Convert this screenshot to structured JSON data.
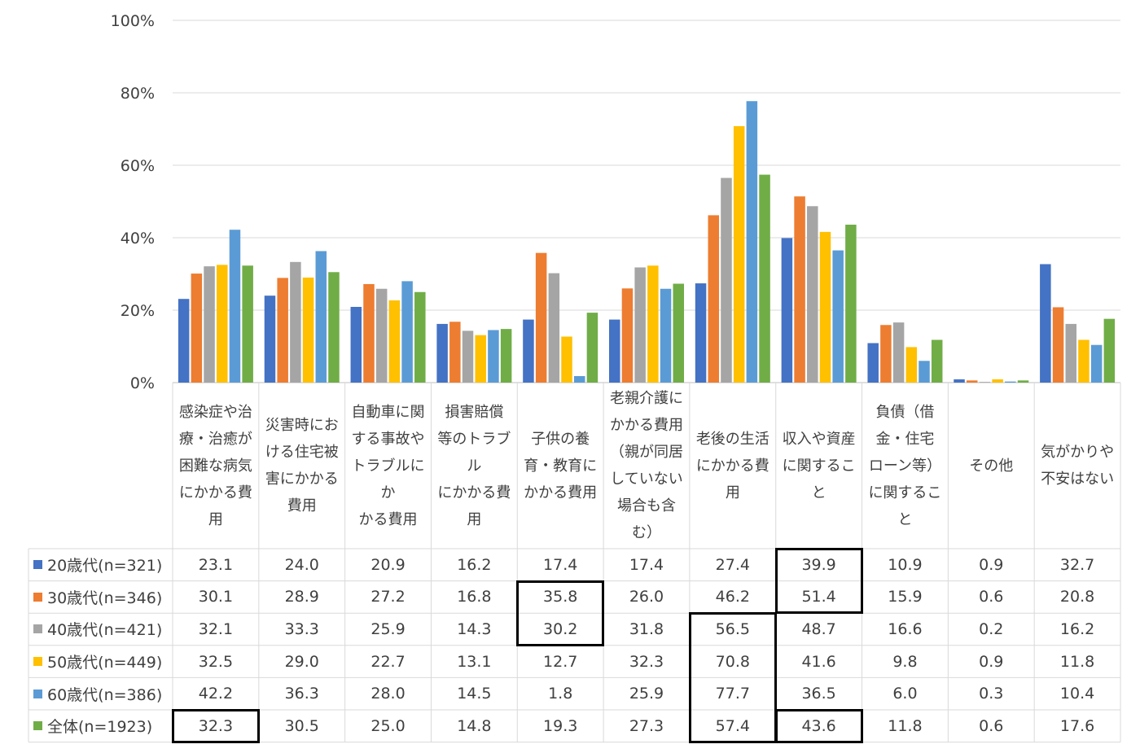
{
  "chart_data": {
    "type": "bar",
    "ylim": [
      0,
      100
    ],
    "y_ticks": [
      "0%",
      "20%",
      "40%",
      "60%",
      "80%",
      "100%"
    ],
    "grid": true,
    "legend": "table-rows",
    "categories": [
      [
        "感染症や治",
        "療・治癒が",
        "困難な病気",
        "にかかる費",
        "用"
      ],
      [
        "災害時にお",
        "ける住宅被",
        "害にかかる",
        "費用"
      ],
      [
        "自動車に関",
        "する事故や",
        "トラブルにか",
        "かる費用"
      ],
      [
        "損害賠償",
        "等のトラブル",
        "にかかる費",
        "用"
      ],
      [
        "子供の養",
        "育・教育に",
        "かかる費用"
      ],
      [
        "老親介護に",
        "かかる費用",
        "（親が同居",
        "していない",
        "場合も含",
        "む）"
      ],
      [
        "老後の生活",
        "にかかる費",
        "用"
      ],
      [
        "収入や資産",
        "に関すること"
      ],
      [
        "負債（借",
        "金・住宅",
        "ローン等）",
        "に関すること"
      ],
      [
        "その他"
      ],
      [
        "気がかりや",
        "不安はない"
      ]
    ],
    "series": [
      {
        "name": "20歳代(n=321)",
        "color": "#4472C4",
        "values": [
          "23.1",
          "24.0",
          "20.9",
          "16.2",
          "17.4",
          "17.4",
          "27.4",
          "39.9",
          "10.9",
          "0.9",
          "32.7"
        ]
      },
      {
        "name": "30歳代(n=346)",
        "color": "#ED7D31",
        "values": [
          "30.1",
          "28.9",
          "27.2",
          "16.8",
          "35.8",
          "26.0",
          "46.2",
          "51.4",
          "15.9",
          "0.6",
          "20.8"
        ]
      },
      {
        "name": "40歳代(n=421)",
        "color": "#A5A5A5",
        "values": [
          "32.1",
          "33.3",
          "25.9",
          "14.3",
          "30.2",
          "31.8",
          "56.5",
          "48.7",
          "16.6",
          "0.2",
          "16.2"
        ]
      },
      {
        "name": "50歳代(n=449)",
        "color": "#FFC000",
        "values": [
          "32.5",
          "29.0",
          "22.7",
          "13.1",
          "12.7",
          "32.3",
          "70.8",
          "41.6",
          "9.8",
          "0.9",
          "11.8"
        ]
      },
      {
        "name": "60歳代(n=386)",
        "color": "#5B9BD5",
        "values": [
          "42.2",
          "36.3",
          "28.0",
          "14.5",
          "1.8",
          "25.9",
          "77.7",
          "36.5",
          "6.0",
          "0.3",
          "10.4"
        ]
      },
      {
        "name": "全体(n=1923)",
        "color": "#70AD47",
        "values": [
          "32.3",
          "30.5",
          "25.0",
          "14.8",
          "19.3",
          "27.3",
          "57.4",
          "43.6",
          "11.8",
          "0.6",
          "17.6"
        ]
      }
    ],
    "highlights": [
      {
        "col": 0,
        "rows": [
          5,
          5
        ]
      },
      {
        "col": 4,
        "rows": [
          1,
          2
        ]
      },
      {
        "col": 6,
        "rows": [
          2,
          5
        ]
      },
      {
        "col": 7,
        "rows": [
          0,
          1
        ]
      },
      {
        "col": 7,
        "rows": [
          5,
          5
        ]
      }
    ]
  }
}
